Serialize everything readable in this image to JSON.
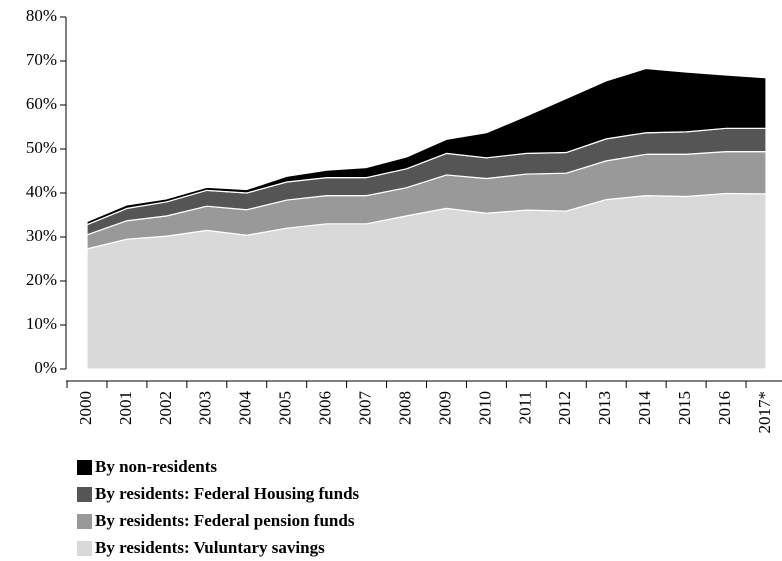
{
  "chart_data": {
    "type": "stacked_area",
    "categories": [
      "2000",
      "2001",
      "2002",
      "2003",
      "2004",
      "2005",
      "2006",
      "2007",
      "2008",
      "2009",
      "2010",
      "2011",
      "2012",
      "2013",
      "2014",
      "2015",
      "2016",
      "2017*"
    ],
    "series": [
      {
        "name": "By non-residents",
        "color": "#000000",
        "values": [
          0.7,
          0.8,
          0.7,
          0.7,
          0.8,
          1.3,
          1.7,
          2.3,
          2.7,
          3.2,
          5.7,
          8.5,
          12.3,
          13.2,
          14.6,
          13.6,
          12.1,
          11.5
        ]
      },
      {
        "name": "By residents: Federal Housing funds",
        "color": "#555555",
        "values": [
          2.3,
          2.8,
          3.2,
          3.6,
          3.8,
          4.1,
          4.1,
          4.1,
          4.3,
          4.9,
          4.7,
          4.7,
          4.7,
          5.0,
          4.9,
          5.1,
          5.3,
          5.3
        ]
      },
      {
        "name": "By residents: Federal pension funds",
        "color": "#999999",
        "values": [
          3.2,
          4.2,
          4.6,
          5.5,
          5.8,
          6.4,
          6.4,
          6.4,
          6.4,
          7.6,
          7.9,
          8.2,
          8.6,
          8.8,
          9.4,
          9.6,
          9.5,
          9.6
        ]
      },
      {
        "name": "By residents: Vuluntary savings",
        "color": "#d9d9d9",
        "values": [
          27.3,
          29.5,
          30.2,
          31.5,
          30.4,
          32.0,
          33.0,
          33.0,
          34.8,
          36.5,
          35.4,
          36.1,
          35.9,
          38.5,
          39.4,
          39.2,
          39.9,
          39.8
        ]
      }
    ],
    "ylim": [
      0,
      80
    ],
    "yticks": [
      {
        "value": 0,
        "label": "0%"
      },
      {
        "value": 10,
        "label": "10%"
      },
      {
        "value": 20,
        "label": "20%"
      },
      {
        "value": 30,
        "label": "30%"
      },
      {
        "value": 40,
        "label": "40%"
      },
      {
        "value": 50,
        "label": "50%"
      },
      {
        "value": 60,
        "label": "60%"
      },
      {
        "value": 70,
        "label": "70%"
      },
      {
        "value": 80,
        "label": "80%"
      }
    ]
  }
}
